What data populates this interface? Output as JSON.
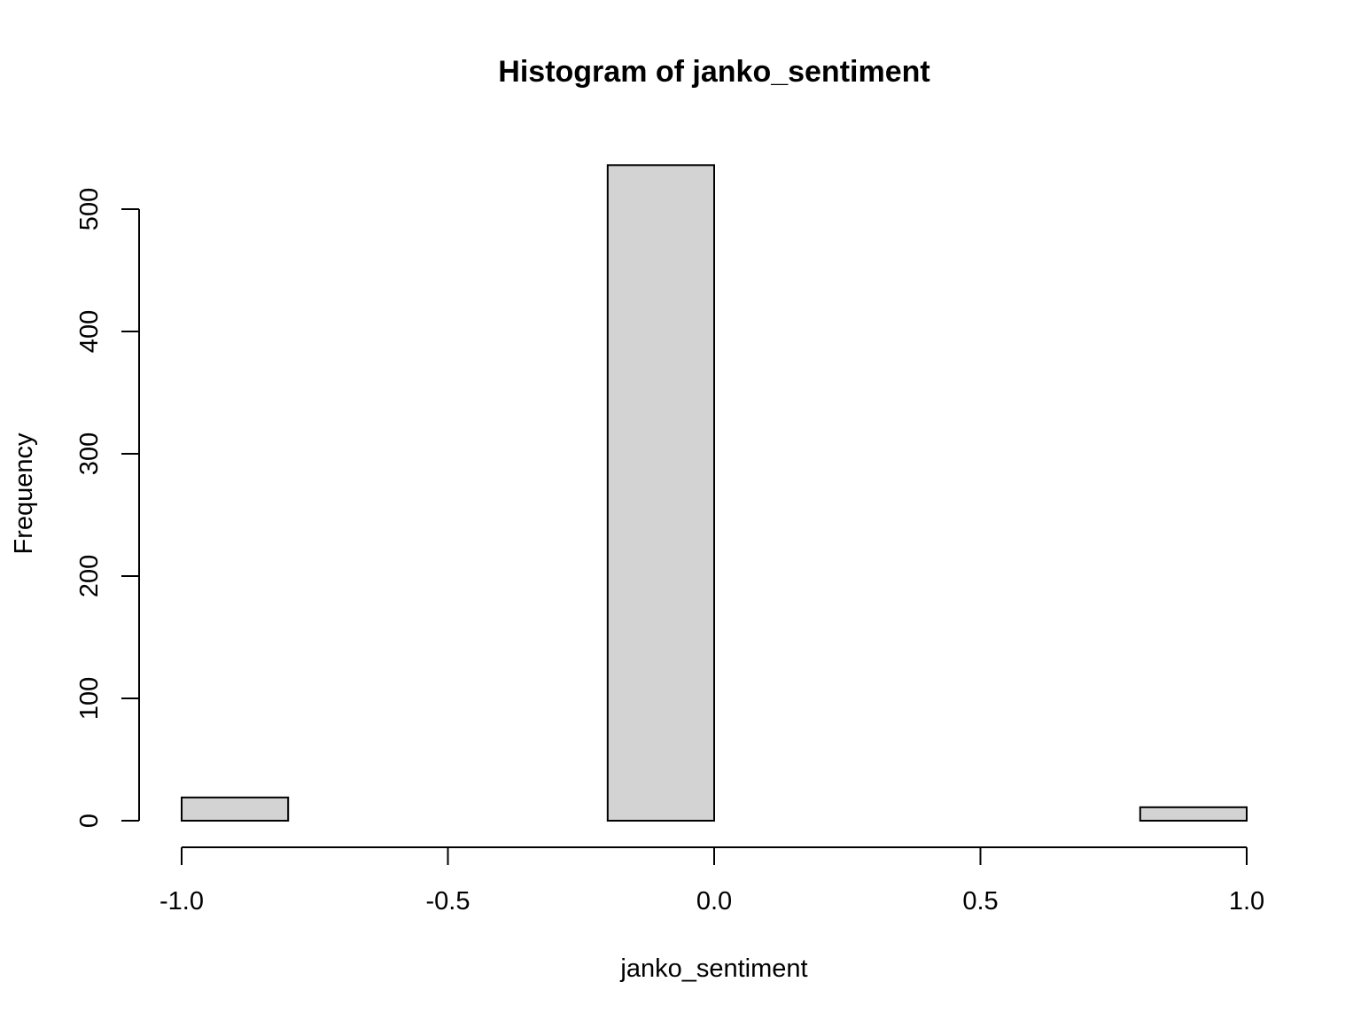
{
  "chart_data": {
    "type": "bar",
    "histogram": true,
    "title": "Histogram of janko_sentiment",
    "xlabel": "janko_sentiment",
    "ylabel": "Frequency",
    "bins": [
      {
        "from": -1.0,
        "to": -0.8,
        "count": 19
      },
      {
        "from": -0.8,
        "to": -0.6,
        "count": 0
      },
      {
        "from": -0.6,
        "to": -0.4,
        "count": 0
      },
      {
        "from": -0.4,
        "to": -0.2,
        "count": 0
      },
      {
        "from": -0.2,
        "to": 0.0,
        "count": 536
      },
      {
        "from": 0.0,
        "to": 0.2,
        "count": 0
      },
      {
        "from": 0.2,
        "to": 0.4,
        "count": 0
      },
      {
        "from": 0.4,
        "to": 0.6,
        "count": 0
      },
      {
        "from": 0.6,
        "to": 0.8,
        "count": 0
      },
      {
        "from": 0.8,
        "to": 1.0,
        "count": 11
      }
    ],
    "xlim": [
      -1.0,
      1.0
    ],
    "ylim": [
      0,
      536
    ],
    "xticks": [
      -1.0,
      -0.5,
      0.0,
      0.5,
      1.0
    ],
    "xtick_labels": [
      "-1.0",
      "-0.5",
      "0.0",
      "0.5",
      "1.0"
    ],
    "yticks": [
      0,
      100,
      200,
      300,
      400,
      500
    ],
    "ytick_labels": [
      "0",
      "100",
      "200",
      "300",
      "400",
      "500"
    ],
    "grid": false,
    "colors": {
      "bar_fill": "#d3d3d3",
      "bar_stroke": "#000000",
      "axis": "#000000",
      "background": "#ffffff"
    }
  }
}
